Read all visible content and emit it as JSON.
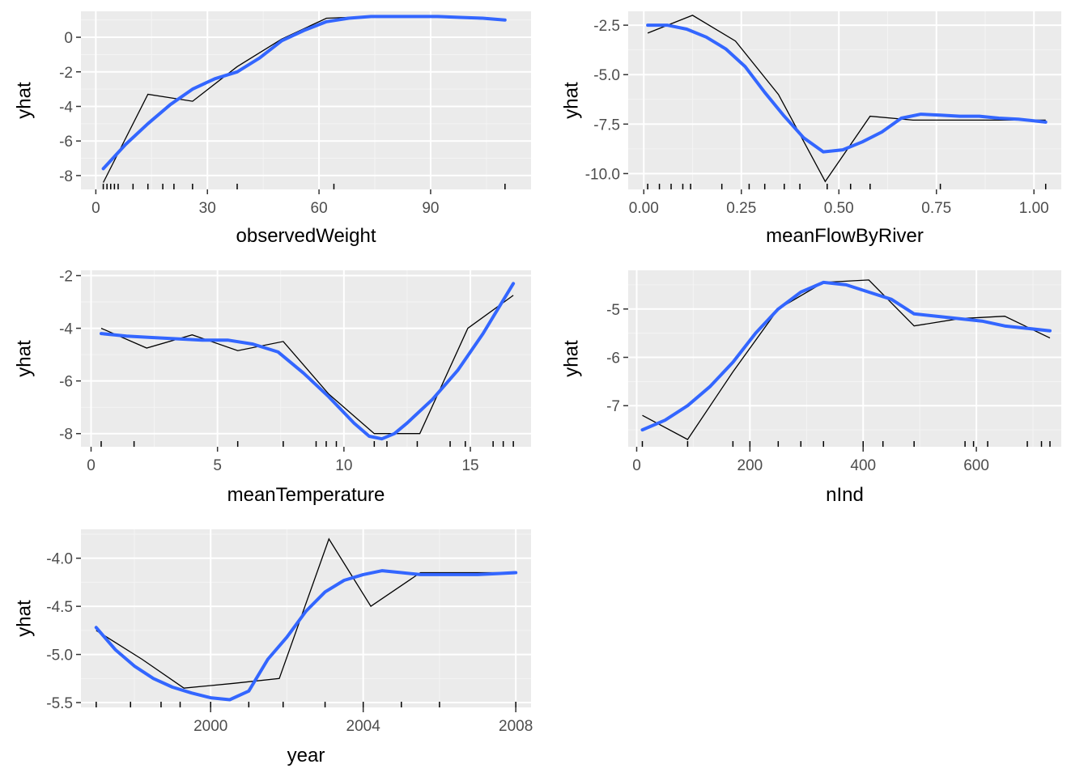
{
  "colors": {
    "panel": "#EBEBEB",
    "grid": "#FFFFFF",
    "raw": "#000000",
    "smooth": "#3366FF"
  },
  "chart_data": [
    {
      "type": "line",
      "xlabel": "observedWeight",
      "ylabel": "yhat",
      "xlim": [
        -4,
        117
      ],
      "ylim": [
        -8.8,
        1.5
      ],
      "xticks": [
        0,
        30,
        60,
        90
      ],
      "xtick_labels": [
        "0",
        "30",
        "60",
        "90"
      ],
      "yticks": [
        0,
        -2,
        -4,
        -6,
        -8
      ],
      "ytick_labels": [
        "0",
        "-2",
        "-4",
        "-6",
        "-8"
      ],
      "series": [
        {
          "role": "raw",
          "x": [
            2,
            14,
            26,
            38,
            50,
            62,
            74,
            86,
            98,
            110
          ],
          "y": [
            -8.4,
            -3.3,
            -3.7,
            -1.7,
            -0.1,
            1.1,
            1.2,
            1.2,
            1.1,
            1.0
          ]
        },
        {
          "role": "smooth",
          "x": [
            2,
            8,
            14,
            20,
            26,
            32,
            38,
            44,
            50,
            56,
            62,
            68,
            74,
            80,
            86,
            92,
            98,
            104,
            110
          ],
          "y": [
            -7.6,
            -6.2,
            -5.0,
            -3.9,
            -3.0,
            -2.4,
            -2.0,
            -1.2,
            -0.2,
            0.4,
            0.9,
            1.1,
            1.2,
            1.2,
            1.2,
            1.2,
            1.15,
            1.1,
            1.0
          ]
        }
      ],
      "rug": [
        2,
        3,
        4,
        5,
        6,
        10,
        14,
        18,
        21,
        26,
        38,
        64,
        110
      ]
    },
    {
      "type": "line",
      "xlabel": "meanFlowByRiver",
      "ylabel": "yhat",
      "xlim": [
        -0.04,
        1.07
      ],
      "ylim": [
        -10.8,
        -1.8
      ],
      "xticks": [
        0,
        0.25,
        0.5,
        0.75,
        1.0
      ],
      "xtick_labels": [
        "0.00",
        "0.25",
        "0.50",
        "0.75",
        "1.00"
      ],
      "yticks": [
        -2.5,
        -5.0,
        -7.5,
        -10.0
      ],
      "ytick_labels": [
        "-2.5",
        "-5.0",
        "-7.5",
        "-10.0"
      ],
      "series": [
        {
          "role": "raw",
          "x": [
            0.01,
            0.125,
            0.235,
            0.345,
            0.465,
            0.58,
            0.69,
            0.8,
            0.91,
            1.03
          ],
          "y": [
            -2.9,
            -2.0,
            -3.3,
            -6.0,
            -10.4,
            -7.1,
            -7.3,
            -7.3,
            -7.3,
            -7.3
          ]
        },
        {
          "role": "smooth",
          "x": [
            0.01,
            0.06,
            0.11,
            0.16,
            0.21,
            0.26,
            0.31,
            0.36,
            0.41,
            0.46,
            0.51,
            0.56,
            0.61,
            0.66,
            0.71,
            0.76,
            0.81,
            0.86,
            0.91,
            0.96,
            1.03
          ],
          "y": [
            -2.5,
            -2.5,
            -2.7,
            -3.1,
            -3.7,
            -4.6,
            -5.9,
            -7.1,
            -8.2,
            -8.9,
            -8.8,
            -8.4,
            -7.9,
            -7.2,
            -7.0,
            -7.05,
            -7.1,
            -7.1,
            -7.2,
            -7.25,
            -7.4
          ]
        }
      ],
      "rug": [
        0.01,
        0.04,
        0.07,
        0.1,
        0.12,
        0.2,
        0.27,
        0.31,
        0.36,
        0.4,
        0.47,
        0.53,
        0.58,
        0.76,
        1.03
      ]
    },
    {
      "type": "line",
      "xlabel": "meanTemperature",
      "ylabel": "yhat",
      "xlim": [
        -0.4,
        17.4
      ],
      "ylim": [
        -8.5,
        -1.8
      ],
      "xticks": [
        0,
        5,
        10,
        15
      ],
      "xtick_labels": [
        "0",
        "5",
        "10",
        "15"
      ],
      "yticks": [
        -2,
        -4,
        -6,
        -8
      ],
      "ytick_labels": [
        "-2",
        "-4",
        "-6",
        "-8"
      ],
      "series": [
        {
          "role": "raw",
          "x": [
            0.4,
            2.2,
            4.0,
            5.8,
            7.6,
            9.4,
            11.2,
            13.0,
            14.9,
            16.7
          ],
          "y": [
            -4.0,
            -4.75,
            -4.25,
            -4.85,
            -4.5,
            -6.5,
            -8.0,
            -8.0,
            -4.0,
            -2.75
          ]
        },
        {
          "role": "smooth",
          "x": [
            0.4,
            1.4,
            2.4,
            3.4,
            4.4,
            5.4,
            6.4,
            7.4,
            8.4,
            9.4,
            10.4,
            11.0,
            11.5,
            12.0,
            12.5,
            13.5,
            14.5,
            15.5,
            16.7
          ],
          "y": [
            -4.2,
            -4.3,
            -4.35,
            -4.4,
            -4.45,
            -4.45,
            -4.6,
            -4.9,
            -5.7,
            -6.6,
            -7.6,
            -8.1,
            -8.2,
            -8.0,
            -7.6,
            -6.7,
            -5.6,
            -4.2,
            -2.3
          ]
        }
      ],
      "rug": [
        0.4,
        1.7,
        5.8,
        7.6,
        8.9,
        9.3,
        9.7,
        11.2,
        11.7,
        12.9,
        14.2,
        14.8,
        15.9,
        16.3,
        16.7
      ]
    },
    {
      "type": "line",
      "xlabel": "nInd",
      "ylabel": "yhat",
      "xlim": [
        -15,
        750
      ],
      "ylim": [
        -7.85,
        -4.2
      ],
      "xticks": [
        0,
        200,
        400,
        600
      ],
      "xtick_labels": [
        "0",
        "200",
        "400",
        "600"
      ],
      "yticks": [
        -5,
        -6,
        -7
      ],
      "ytick_labels": [
        "-5",
        "-6",
        "-7"
      ],
      "series": [
        {
          "role": "raw",
          "x": [
            10,
            90,
            170,
            250,
            330,
            410,
            490,
            570,
            650,
            730
          ],
          "y": [
            -7.2,
            -7.7,
            -6.3,
            -5.0,
            -4.45,
            -4.4,
            -5.35,
            -5.2,
            -5.15,
            -5.6
          ]
        },
        {
          "role": "smooth",
          "x": [
            10,
            50,
            90,
            130,
            170,
            210,
            250,
            290,
            330,
            370,
            410,
            450,
            490,
            530,
            570,
            610,
            650,
            690,
            730
          ],
          "y": [
            -7.5,
            -7.3,
            -7.0,
            -6.6,
            -6.1,
            -5.5,
            -5.0,
            -4.65,
            -4.45,
            -4.5,
            -4.65,
            -4.8,
            -5.1,
            -5.15,
            -5.2,
            -5.25,
            -5.35,
            -5.4,
            -5.45
          ]
        }
      ],
      "rug": [
        10,
        90,
        170,
        200,
        250,
        290,
        330,
        400,
        435,
        490,
        580,
        595,
        620,
        690,
        715,
        730
      ]
    },
    {
      "type": "line",
      "xlabel": "year",
      "ylabel": "yhat",
      "xlim": [
        1996.6,
        2008.4
      ],
      "ylim": [
        -5.55,
        -3.7
      ],
      "xticks": [
        2000,
        2004,
        2008
      ],
      "xtick_labels": [
        "2000",
        "2004",
        "2008"
      ],
      "yticks": [
        -4.0,
        -4.5,
        -5.0,
        -5.5
      ],
      "ytick_labels": [
        "-4.0",
        "-4.5",
        "-5.0",
        "-5.5"
      ],
      "series": [
        {
          "role": "raw",
          "x": [
            1997.0,
            1998.2,
            1999.3,
            2000.6,
            2001.8,
            2003.1,
            2004.2,
            2005.5,
            2006.8,
            2008.0
          ],
          "y": [
            -4.75,
            -5.05,
            -5.35,
            -5.3,
            -5.25,
            -3.8,
            -4.5,
            -4.15,
            -4.15,
            -4.15
          ]
        },
        {
          "role": "smooth",
          "x": [
            1997.0,
            1997.5,
            1998.0,
            1998.5,
            1999.0,
            1999.5,
            2000.0,
            2000.5,
            2001.0,
            2001.5,
            2002.0,
            2002.5,
            2003.0,
            2003.5,
            2004.0,
            2004.5,
            2005.0,
            2005.5,
            2006.0,
            2006.5,
            2007.0,
            2007.5,
            2008.0
          ],
          "y": [
            -4.72,
            -4.95,
            -5.12,
            -5.25,
            -5.34,
            -5.4,
            -5.45,
            -5.47,
            -5.38,
            -5.05,
            -4.82,
            -4.55,
            -4.35,
            -4.23,
            -4.17,
            -4.13,
            -4.15,
            -4.17,
            -4.17,
            -4.17,
            -4.17,
            -4.16,
            -4.15
          ]
        }
      ],
      "rug": [
        1997.0,
        1997.9,
        1998.7,
        1999.2,
        2000.0,
        2001.0,
        2001.9,
        2003.0,
        2004.0,
        2005.0,
        2006.0,
        2008.0
      ]
    }
  ]
}
